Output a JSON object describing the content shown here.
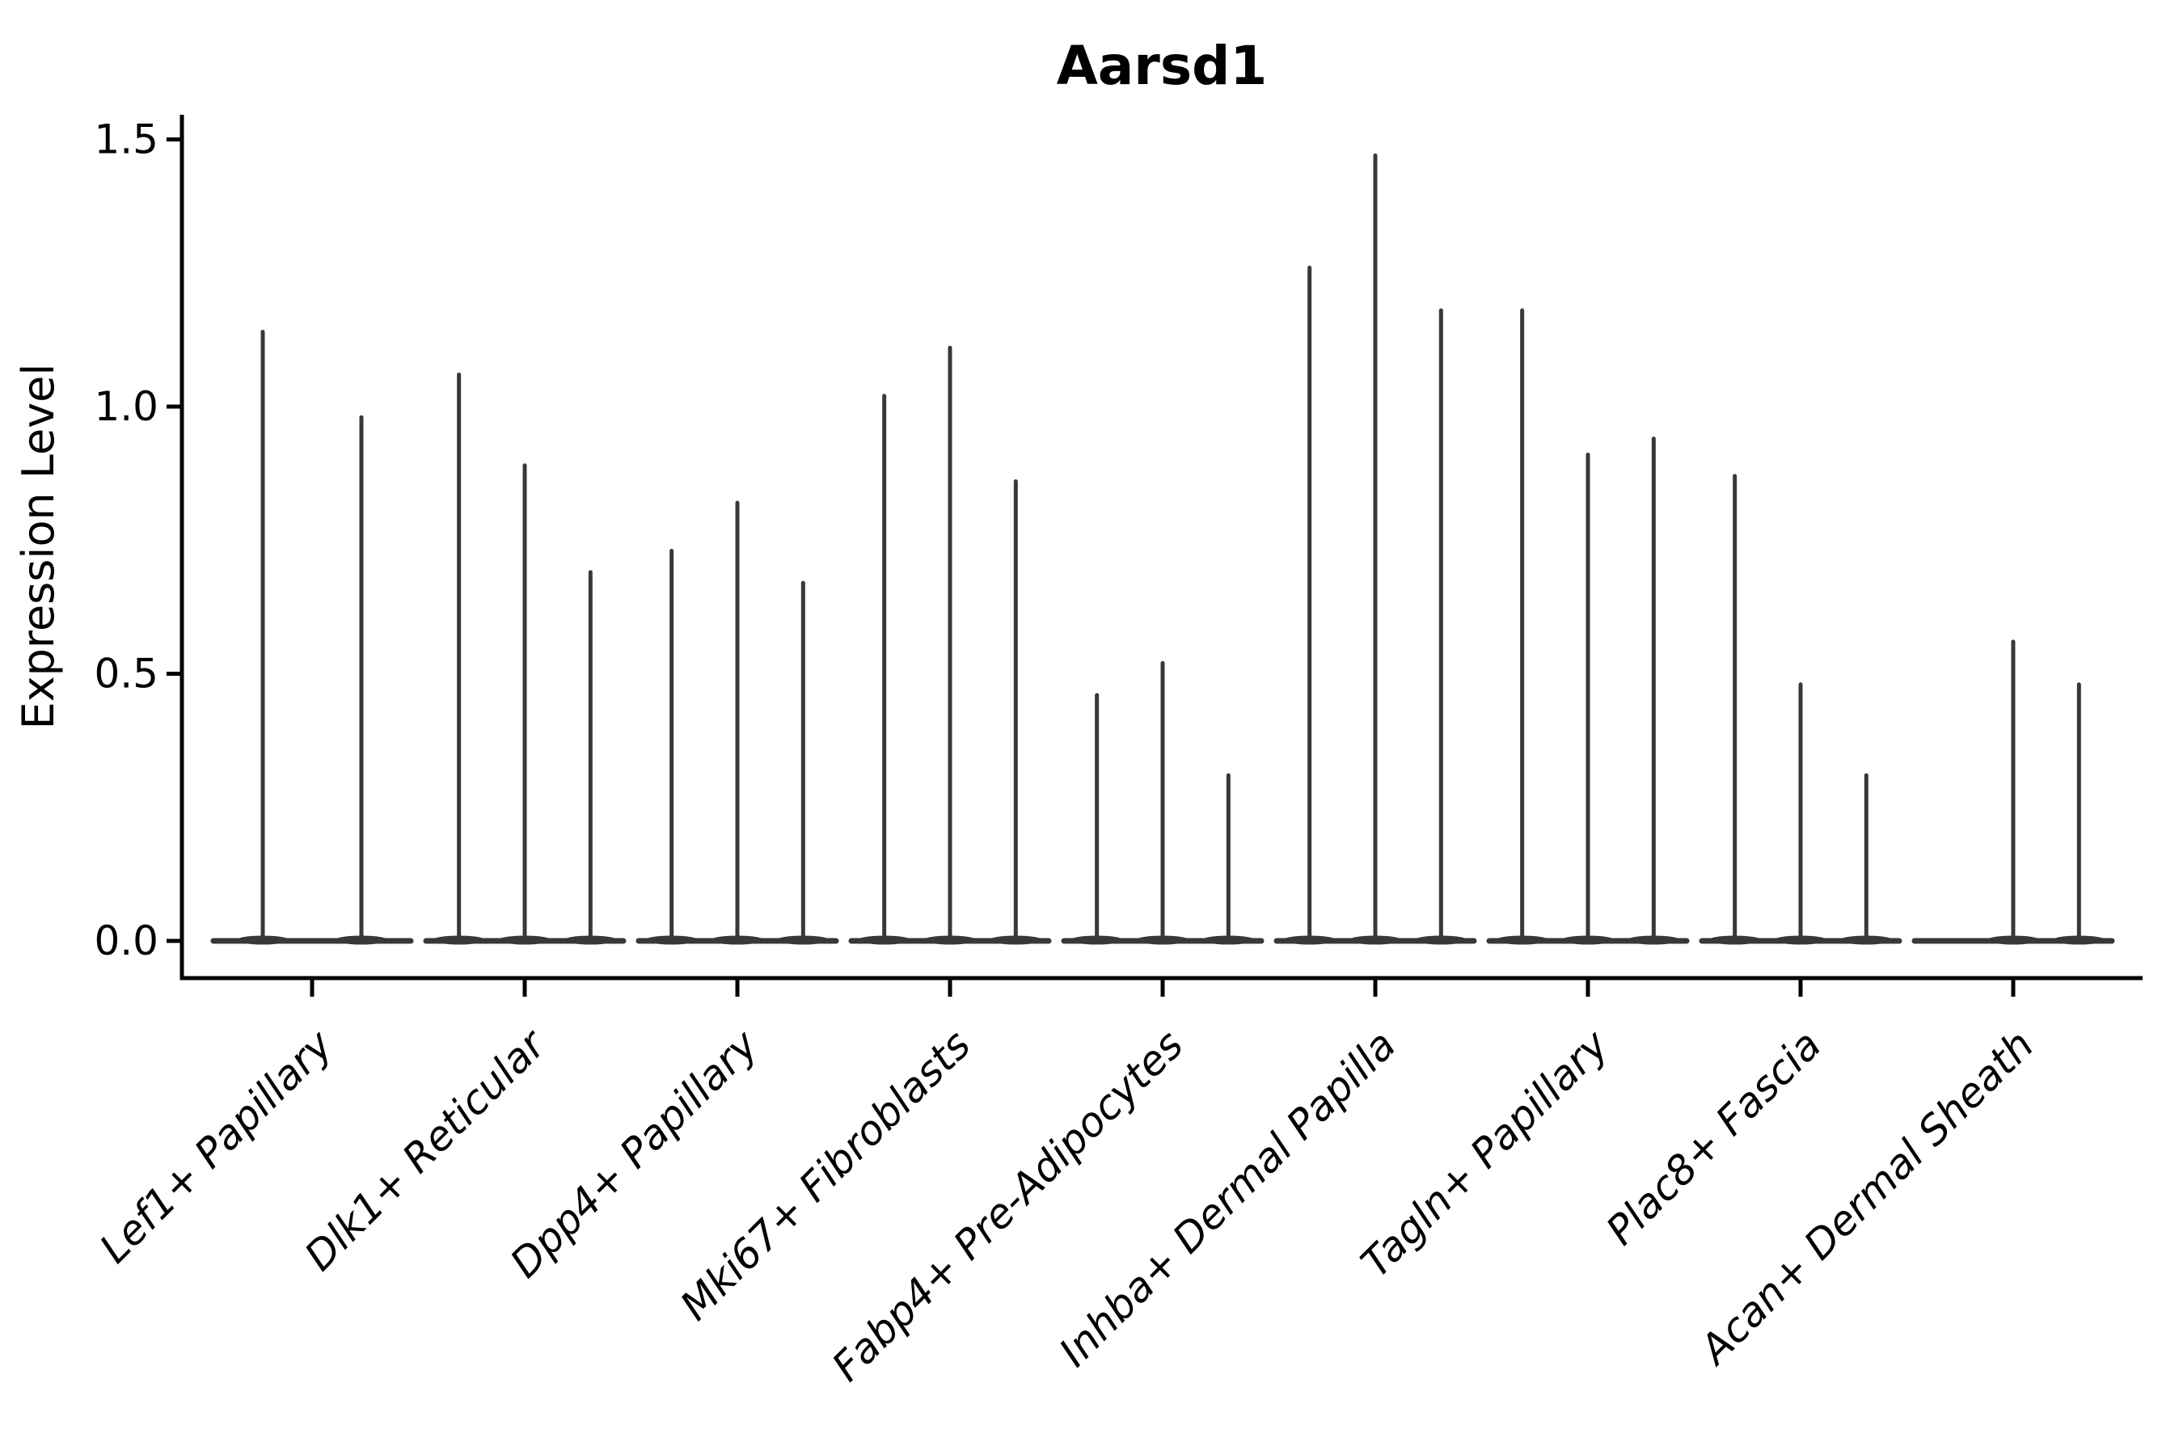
{
  "chart_data": {
    "type": "violin",
    "title": "Aarsd1",
    "ylabel": "Expression Level",
    "xlabel": "",
    "grid": false,
    "legend": "none",
    "background_color": "#ffffff",
    "violin_color": "#383838",
    "axis_color": "#000000",
    "x_label_rotation_deg": 45,
    "x_label_style": "italic",
    "ytick_labels": [
      "0.0",
      "0.5",
      "1.0",
      "1.5"
    ],
    "ytick_values": [
      0.0,
      0.5,
      1.0,
      1.5
    ],
    "ylim": [
      -0.07,
      1.55
    ],
    "categories": [
      "Lef1+ Papillary",
      "Dlk1+ Reticular",
      "Dpp4+ Papillary",
      "Mki67+ Fibroblasts",
      "Fabp4+ Pre-Adipocytes",
      "Inhba+ Dermal Papilla",
      "Tagln+ Papillary",
      "Plac8+ Fascia",
      "Acan+ Dermal Sheath"
    ],
    "series": [
      {
        "category": "Lef1+ Papillary",
        "violin_maxima": [
          1.14,
          0.98
        ]
      },
      {
        "category": "Dlk1+ Reticular",
        "violin_maxima": [
          1.06,
          0.89,
          0.69
        ]
      },
      {
        "category": "Dpp4+ Papillary",
        "violin_maxima": [
          0.73,
          0.82,
          0.67
        ]
      },
      {
        "category": "Mki67+ Fibroblasts",
        "violin_maxima": [
          1.02,
          1.11,
          0.86
        ]
      },
      {
        "category": "Fabp4+ Pre-Adipocytes",
        "violin_maxima": [
          0.46,
          0.52,
          0.31
        ]
      },
      {
        "category": "Inhba+ Dermal Papilla",
        "violin_maxima": [
          1.26,
          1.47,
          1.18
        ]
      },
      {
        "category": "Tagln+ Papillary",
        "violin_maxima": [
          1.18,
          0.91,
          0.94
        ]
      },
      {
        "category": "Plac8+ Fascia",
        "violin_maxima": [
          0.87,
          0.48,
          0.31
        ]
      },
      {
        "category": "Acan+ Dermal Sheath",
        "violin_maxima": [
          0.0,
          0.56,
          0.48
        ]
      }
    ]
  }
}
